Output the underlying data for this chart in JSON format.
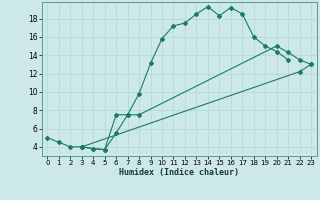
{
  "xlabel": "Humidex (Indice chaleur)",
  "bg_color": "#cce8e8",
  "line_color": "#1a7a6e",
  "grid_color": "#b8d8d8",
  "xlim": [
    -0.5,
    23.5
  ],
  "ylim": [
    3.0,
    19.8
  ],
  "xticks": [
    0,
    1,
    2,
    3,
    4,
    5,
    6,
    7,
    8,
    9,
    10,
    11,
    12,
    13,
    14,
    15,
    16,
    17,
    18,
    19,
    20,
    21,
    22,
    23
  ],
  "yticks": [
    4,
    6,
    8,
    10,
    12,
    14,
    16,
    18
  ],
  "series": [
    {
      "x": [
        0,
        1,
        2,
        3,
        4,
        5,
        6,
        7,
        8,
        9,
        10,
        11,
        12,
        13,
        14,
        15,
        16,
        17,
        18,
        19,
        20,
        21
      ],
      "y": [
        5.0,
        4.5,
        4.0,
        4.0,
        3.8,
        3.7,
        7.5,
        7.5,
        9.8,
        13.1,
        15.8,
        17.2,
        17.5,
        18.5,
        19.3,
        18.3,
        19.2,
        18.5,
        16.0,
        15.0,
        14.4,
        13.5
      ]
    },
    {
      "x": [
        3,
        4,
        5,
        6,
        7,
        8,
        20,
        21,
        22,
        23
      ],
      "y": [
        4.0,
        3.8,
        3.7,
        5.5,
        7.5,
        7.5,
        15.0,
        14.3,
        13.5,
        13.0
      ]
    },
    {
      "x": [
        3,
        22,
        23
      ],
      "y": [
        4.0,
        12.2,
        13.0
      ]
    }
  ]
}
